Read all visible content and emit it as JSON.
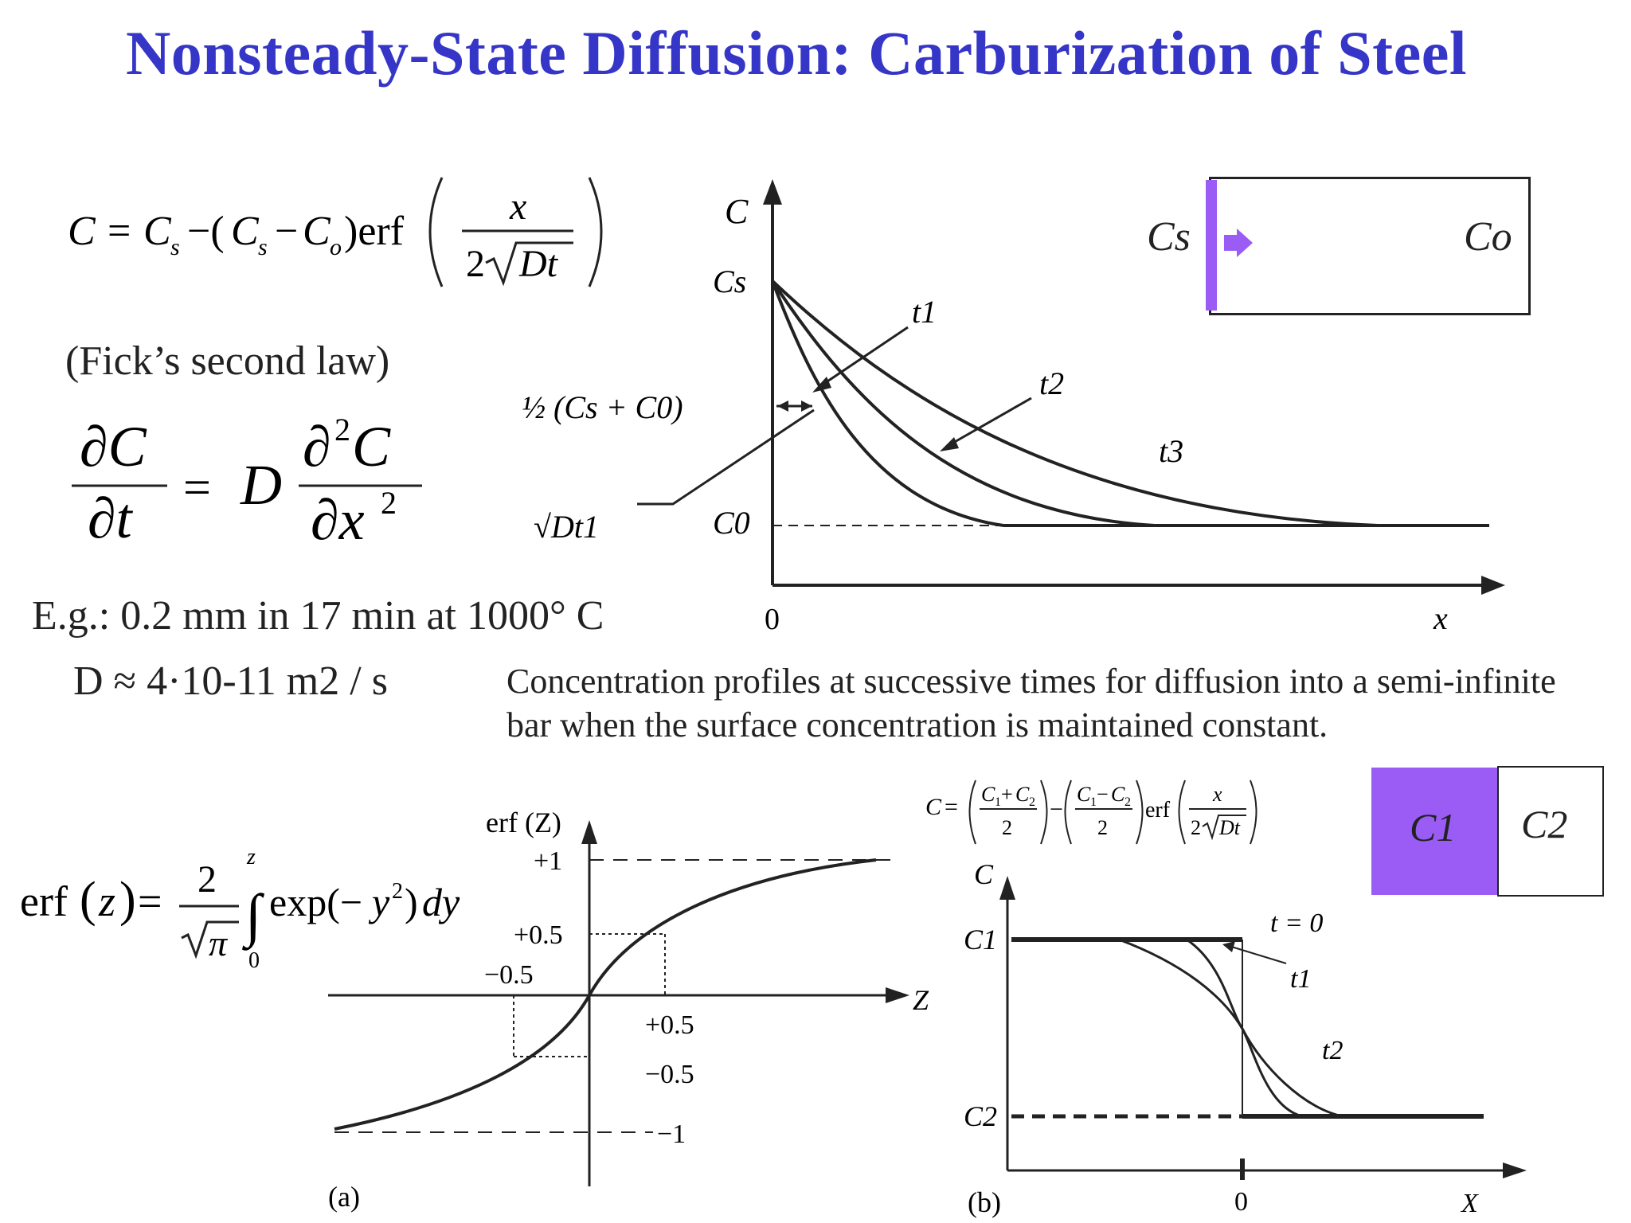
{
  "title": "Nonsteady-State Diffusion: Carburization of Steel",
  "fick_label": "(Fick’s second law)",
  "example": {
    "line1": "E.g.: 0.2 mm in 17 min at 1000° C",
    "line2": "D ≈ 4·10-11 m2 / s"
  },
  "caption": "Concentration profiles at successive times for diffusion into a semi-infinite bar when the surface concentration is maintained constant.",
  "top_plot": {
    "y_axis": "C",
    "x_axis": "x",
    "origin": "0",
    "cs_label": "Cs",
    "c0_label": "C0",
    "half_label": "½ (Cs + C0)",
    "sqrt_label": "√Dt1",
    "curves": [
      "t1",
      "t2",
      "t3"
    ]
  },
  "top_box": {
    "left": "Cs",
    "right": "Co",
    "accent": "#9b5cf5"
  },
  "erf_plot": {
    "y_axis": "erf (Z)",
    "x_axis": "Z",
    "ticks_y": [
      "+1",
      "+0.5",
      "−0.5",
      "−1"
    ],
    "ticks_x": [
      "−0.5",
      "+0.5"
    ],
    "panel": "(a)"
  },
  "step_plot": {
    "y_axis": "C",
    "x_axis": "X",
    "origin": "0",
    "c1": "C1",
    "c2": "C2",
    "t0": "t = 0",
    "curves": [
      "t1",
      "t2"
    ],
    "panel": "(b)"
  },
  "bottom_box": {
    "left": "C1",
    "right": "C2",
    "fill": "#9b5cf5"
  }
}
